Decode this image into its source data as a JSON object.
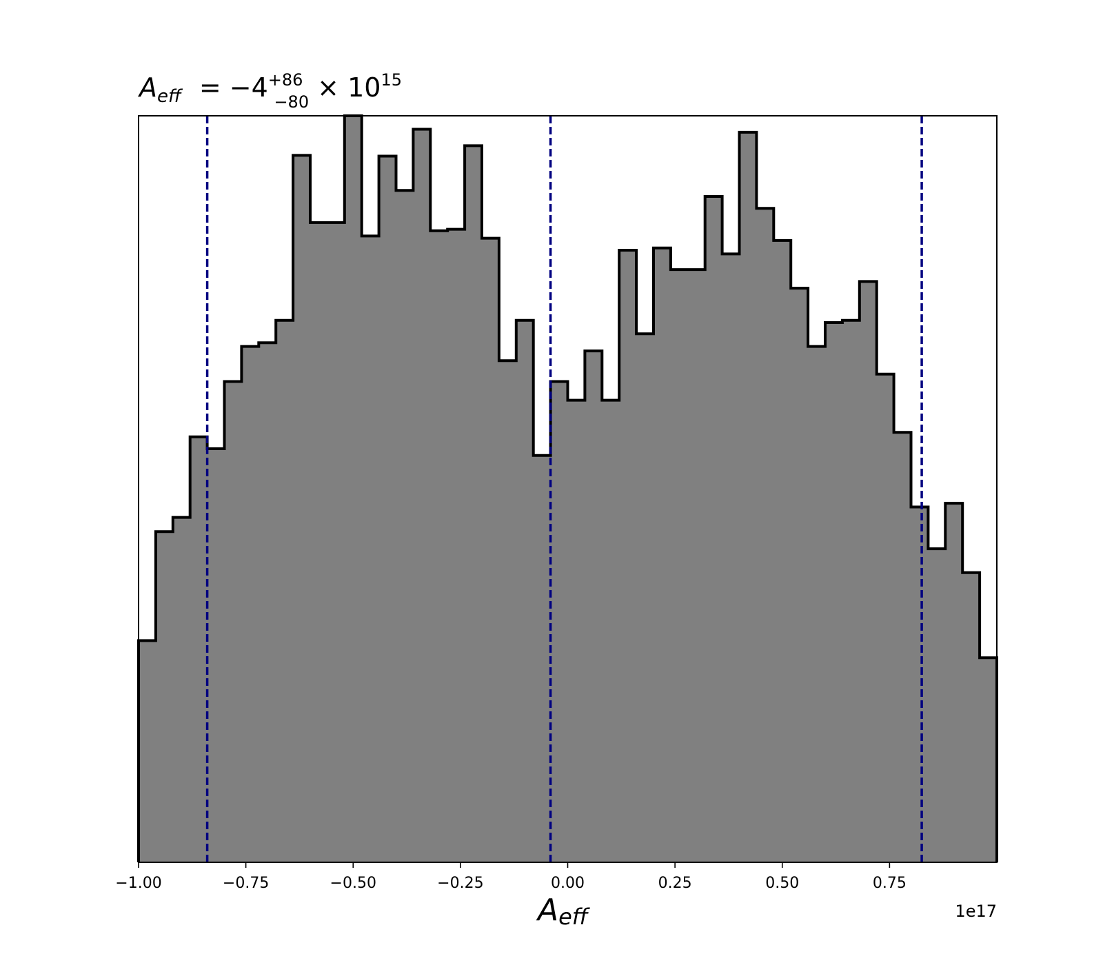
{
  "chart_data": {
    "type": "bar",
    "title": {
      "symbol": "A",
      "symbol_sub": "eff",
      "equals_value": " = −4",
      "err_plus": "+86",
      "err_minus": "−80",
      "times_base": " × 10",
      "exponent": "15"
    },
    "xlabel": {
      "symbol": "A",
      "symbol_sub": "eff"
    },
    "ylabel": "",
    "x_offset_label": "1e17",
    "xlim": [
      -1.0,
      1.0
    ],
    "ylim": [
      0,
      100
    ],
    "xticks": [
      -1.0,
      -0.75,
      -0.5,
      -0.25,
      0.0,
      0.25,
      0.5,
      0.75
    ],
    "xtick_labels": [
      "−1.00",
      "−0.75",
      "−0.50",
      "−0.25",
      "0.00",
      "0.25",
      "0.50",
      "0.75"
    ],
    "bin_edges": [
      -1.0,
      -0.96,
      -0.92,
      -0.88,
      -0.84,
      -0.8,
      -0.76,
      -0.72,
      -0.68,
      -0.64,
      -0.6,
      -0.56,
      -0.52,
      -0.48,
      -0.44,
      -0.4,
      -0.36,
      -0.32,
      -0.28,
      -0.24,
      -0.2,
      -0.16,
      -0.12,
      -0.08,
      -0.04,
      0.0,
      0.04,
      0.08,
      0.12,
      0.16,
      0.2,
      0.24,
      0.28,
      0.32,
      0.36,
      0.4,
      0.44,
      0.48,
      0.52,
      0.56,
      0.6,
      0.64,
      0.68,
      0.72,
      0.76,
      0.8,
      0.84,
      0.88,
      0.92,
      0.96,
      1.0
    ],
    "counts": [
      29.7,
      44.3,
      46.2,
      57.0,
      55.4,
      64.4,
      69.1,
      69.6,
      72.6,
      94.7,
      85.7,
      85.7,
      100.0,
      83.9,
      94.6,
      90.0,
      98.2,
      84.6,
      84.8,
      96.0,
      83.6,
      67.2,
      72.6,
      54.5,
      64.4,
      61.9,
      68.5,
      61.9,
      82.0,
      70.8,
      82.3,
      79.4,
      79.4,
      89.2,
      81.5,
      97.8,
      87.6,
      83.3,
      76.9,
      69.1,
      72.3,
      72.6,
      77.8,
      65.4,
      57.6,
      47.6,
      42.0,
      48.1,
      38.8,
      27.4
    ],
    "vlines": [
      -0.84,
      -0.04,
      0.825
    ],
    "colors": {
      "fill": "#808080",
      "edge": "#000000",
      "vline": "#000080"
    },
    "grid": false,
    "legend": "none"
  }
}
